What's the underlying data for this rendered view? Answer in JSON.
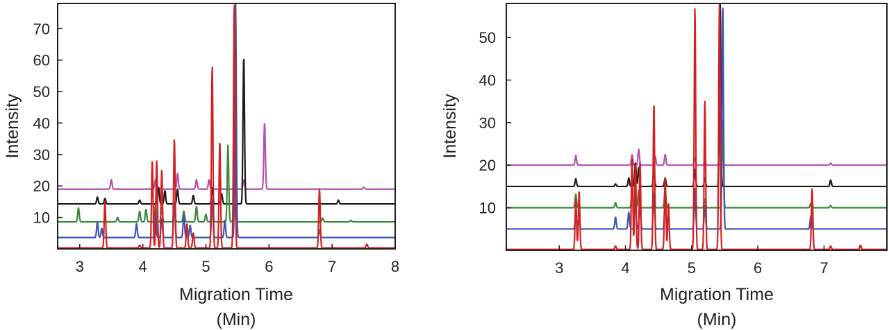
{
  "colors": {
    "magenta": "#b450b4",
    "black": "#1a1a1a",
    "green": "#3a8a3a",
    "blue": "#3b55b5",
    "red": "#d42020",
    "axis": "#231f20"
  },
  "chart_data": [
    {
      "type": "line",
      "xlabel": "Migration Time",
      "xlabel_unit": "(Min)",
      "ylabel": "Intensity",
      "xlim": [
        2.65,
        8.0
      ],
      "ylim": [
        0,
        78
      ],
      "x_ticks": [
        3,
        4,
        5,
        6,
        7,
        8
      ],
      "y_ticks": [
        10,
        20,
        30,
        40,
        50,
        60,
        70
      ],
      "grid": false,
      "series": [
        {
          "color": "magenta",
          "baseline": 19,
          "peaks": [
            {
              "x": 3.5,
              "y": 22
            },
            {
              "x": 4.2,
              "y": 22
            },
            {
              "x": 4.55,
              "y": 24
            },
            {
              "x": 4.85,
              "y": 22
            },
            {
              "x": 5.05,
              "y": 22
            },
            {
              "x": 5.6,
              "y": 22
            },
            {
              "x": 5.93,
              "y": 40
            },
            {
              "x": 7.5,
              "y": 19.6
            }
          ]
        },
        {
          "color": "black",
          "baseline": 14.3,
          "peaks": [
            {
              "x": 3.28,
              "y": 16.5
            },
            {
              "x": 3.4,
              "y": 16
            },
            {
              "x": 3.95,
              "y": 15.5
            },
            {
              "x": 4.25,
              "y": 19.5
            },
            {
              "x": 4.35,
              "y": 18.5
            },
            {
              "x": 4.55,
              "y": 19
            },
            {
              "x": 4.8,
              "y": 17
            },
            {
              "x": 5.1,
              "y": 19.5
            },
            {
              "x": 5.25,
              "y": 17.5
            },
            {
              "x": 5.6,
              "y": 61
            },
            {
              "x": 7.1,
              "y": 15.5
            }
          ]
        },
        {
          "color": "green",
          "baseline": 8.6,
          "peaks": [
            {
              "x": 2.98,
              "y": 13
            },
            {
              "x": 3.6,
              "y": 10
            },
            {
              "x": 3.95,
              "y": 12
            },
            {
              "x": 4.05,
              "y": 12.5
            },
            {
              "x": 4.2,
              "y": 14
            },
            {
              "x": 4.3,
              "y": 13
            },
            {
              "x": 4.5,
              "y": 13.5
            },
            {
              "x": 4.65,
              "y": 12
            },
            {
              "x": 4.85,
              "y": 13.5
            },
            {
              "x": 5.0,
              "y": 11
            },
            {
              "x": 5.1,
              "y": 14
            },
            {
              "x": 5.35,
              "y": 33
            },
            {
              "x": 5.45,
              "y": 14
            },
            {
              "x": 6.85,
              "y": 9.8
            },
            {
              "x": 7.3,
              "y": 9.1
            }
          ]
        },
        {
          "color": "blue",
          "baseline": 3.6,
          "peaks": [
            {
              "x": 3.28,
              "y": 8.5
            },
            {
              "x": 3.35,
              "y": 6.5
            },
            {
              "x": 3.9,
              "y": 8
            },
            {
              "x": 4.2,
              "y": 11.5
            },
            {
              "x": 4.3,
              "y": 9.5
            },
            {
              "x": 4.5,
              "y": 15
            },
            {
              "x": 4.65,
              "y": 11
            },
            {
              "x": 4.75,
              "y": 7.5
            },
            {
              "x": 5.1,
              "y": 16
            },
            {
              "x": 5.3,
              "y": 9
            },
            {
              "x": 5.47,
              "y": 78
            },
            {
              "x": 6.8,
              "y": 6
            }
          ]
        },
        {
          "color": "red",
          "baseline": 0.3,
          "peaks": [
            {
              "x": 3.4,
              "y": 15
            },
            {
              "x": 3.95,
              "y": 1.2
            },
            {
              "x": 4.15,
              "y": 28
            },
            {
              "x": 4.22,
              "y": 28
            },
            {
              "x": 4.3,
              "y": 25
            },
            {
              "x": 4.5,
              "y": 35
            },
            {
              "x": 4.7,
              "y": 8
            },
            {
              "x": 4.8,
              "y": 5
            },
            {
              "x": 5.1,
              "y": 58
            },
            {
              "x": 5.22,
              "y": 34
            },
            {
              "x": 5.45,
              "y": 78
            },
            {
              "x": 6.8,
              "y": 19
            },
            {
              "x": 7.55,
              "y": 1.5
            }
          ]
        }
      ]
    },
    {
      "type": "line",
      "xlabel": "Migration Time",
      "xlabel_unit": "(Min)",
      "ylabel": "Intensity",
      "xlim": [
        2.2,
        7.95
      ],
      "ylim": [
        0,
        58
      ],
      "x_ticks": [
        3,
        4,
        5,
        6,
        7
      ],
      "y_ticks": [
        10,
        20,
        30,
        40,
        50
      ],
      "grid": false,
      "series": [
        {
          "color": "magenta",
          "baseline": 20,
          "peaks": [
            {
              "x": 3.25,
              "y": 22.3
            },
            {
              "x": 4.1,
              "y": 22.5
            },
            {
              "x": 4.2,
              "y": 23.8
            },
            {
              "x": 4.45,
              "y": 22
            },
            {
              "x": 4.6,
              "y": 22.5
            },
            {
              "x": 5.05,
              "y": 21.8
            },
            {
              "x": 5.2,
              "y": 21
            },
            {
              "x": 7.1,
              "y": 20.5
            }
          ]
        },
        {
          "color": "black",
          "baseline": 15,
          "peaks": [
            {
              "x": 3.25,
              "y": 16.8
            },
            {
              "x": 3.85,
              "y": 15.6
            },
            {
              "x": 4.05,
              "y": 17
            },
            {
              "x": 4.15,
              "y": 20.5
            },
            {
              "x": 4.2,
              "y": 19.5
            },
            {
              "x": 4.43,
              "y": 18.8
            },
            {
              "x": 4.6,
              "y": 17
            },
            {
              "x": 5.05,
              "y": 19
            },
            {
              "x": 5.2,
              "y": 17
            },
            {
              "x": 5.43,
              "y": 58
            },
            {
              "x": 7.1,
              "y": 16.5
            }
          ]
        },
        {
          "color": "green",
          "baseline": 10,
          "peaks": [
            {
              "x": 3.25,
              "y": 13.2
            },
            {
              "x": 3.85,
              "y": 11.2
            },
            {
              "x": 4.1,
              "y": 13.5
            },
            {
              "x": 4.2,
              "y": 14.2
            },
            {
              "x": 4.43,
              "y": 13.5
            },
            {
              "x": 4.6,
              "y": 14.5
            },
            {
              "x": 5.05,
              "y": 14.5
            },
            {
              "x": 5.2,
              "y": 12
            },
            {
              "x": 5.47,
              "y": 31
            },
            {
              "x": 6.8,
              "y": 11
            },
            {
              "x": 7.1,
              "y": 10.5
            }
          ]
        },
        {
          "color": "blue",
          "baseline": 5,
          "peaks": [
            {
              "x": 3.25,
              "y": 8.2
            },
            {
              "x": 3.3,
              "y": 7
            },
            {
              "x": 3.85,
              "y": 7.8
            },
            {
              "x": 4.05,
              "y": 9
            },
            {
              "x": 4.15,
              "y": 12
            },
            {
              "x": 4.22,
              "y": 11
            },
            {
              "x": 4.43,
              "y": 13
            },
            {
              "x": 4.6,
              "y": 11
            },
            {
              "x": 5.05,
              "y": 13.5
            },
            {
              "x": 5.2,
              "y": 10.5
            },
            {
              "x": 5.47,
              "y": 58
            },
            {
              "x": 6.8,
              "y": 8
            }
          ]
        },
        {
          "color": "red",
          "baseline": 0.2,
          "peaks": [
            {
              "x": 3.25,
              "y": 12
            },
            {
              "x": 3.3,
              "y": 14
            },
            {
              "x": 3.85,
              "y": 1
            },
            {
              "x": 4.1,
              "y": 22
            },
            {
              "x": 4.15,
              "y": 20
            },
            {
              "x": 4.22,
              "y": 21
            },
            {
              "x": 4.43,
              "y": 34.5
            },
            {
              "x": 4.6,
              "y": 17
            },
            {
              "x": 4.65,
              "y": 11
            },
            {
              "x": 5.05,
              "y": 57
            },
            {
              "x": 5.2,
              "y": 35
            },
            {
              "x": 5.42,
              "y": 58
            },
            {
              "x": 6.82,
              "y": 14.5
            },
            {
              "x": 7.1,
              "y": 1
            },
            {
              "x": 7.55,
              "y": 1.2
            }
          ]
        }
      ]
    }
  ]
}
